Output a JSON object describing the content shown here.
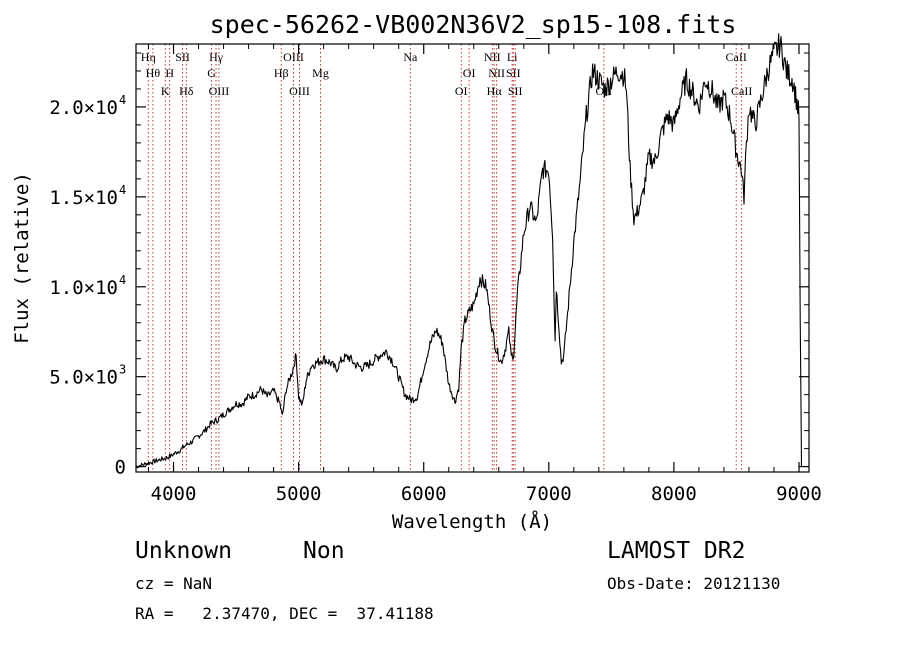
{
  "chart_data": {
    "type": "line",
    "title": "spec-56262-VB002N36V2_sp15-108.fits",
    "xlabel": "Wavelength (Å)",
    "ylabel": "Flux (relative)",
    "xlim": [
      3700,
      9080
    ],
    "ylim": [
      -300,
      23500
    ],
    "xticks": [
      {
        "value": 4000,
        "label": "4000"
      },
      {
        "value": 5000,
        "label": "5000"
      },
      {
        "value": 6000,
        "label": "6000"
      },
      {
        "value": 7000,
        "label": "7000"
      },
      {
        "value": 8000,
        "label": "8000"
      },
      {
        "value": 9000,
        "label": "9000"
      }
    ],
    "yticks": [
      {
        "value": 0,
        "mantissa": "0",
        "exponent": ""
      },
      {
        "value": 5000,
        "mantissa": "5.0×10",
        "exponent": "3"
      },
      {
        "value": 10000,
        "mantissa": "1.0×10",
        "exponent": "4"
      },
      {
        "value": 15000,
        "mantissa": "1.5×10",
        "exponent": "4"
      },
      {
        "value": 20000,
        "mantissa": "2.0×10",
        "exponent": "4"
      }
    ],
    "grid": false,
    "series": [
      {
        "x": [
          3700,
          3750,
          3800,
          3850,
          3900,
          3950,
          3980,
          4000,
          4050,
          4100,
          4150,
          4200,
          4250,
          4300,
          4350,
          4400,
          4450,
          4500,
          4550,
          4600,
          4650,
          4700,
          4750,
          4800,
          4850,
          4870,
          4900,
          4950,
          4980,
          5000,
          5030,
          5060,
          5100,
          5150,
          5200,
          5250,
          5300,
          5350,
          5400,
          5450,
          5500,
          5550,
          5600,
          5650,
          5700,
          5750,
          5800,
          5850,
          5900,
          5950,
          6000,
          6050,
          6100,
          6150,
          6200,
          6250,
          6280,
          6300,
          6330,
          6370,
          6400,
          6450,
          6500,
          6550,
          6580,
          6620,
          6650,
          6680,
          6700,
          6720,
          6750,
          6800,
          6850,
          6900,
          6950,
          7000,
          7030,
          7050,
          7060,
          7100,
          7120,
          7150,
          7200,
          7250,
          7300,
          7350,
          7400,
          7450,
          7500,
          7550,
          7600,
          7620,
          7650,
          7680,
          7700,
          7750,
          7800,
          7850,
          7900,
          7950,
          8000,
          8050,
          8100,
          8150,
          8200,
          8250,
          8300,
          8350,
          8400,
          8450,
          8500,
          8540,
          8560,
          8580,
          8600,
          8650,
          8700,
          8750,
          8800,
          8850,
          8900,
          8950,
          8990,
          9000,
          9010,
          9020
        ],
        "y": [
          0,
          100,
          200,
          300,
          400,
          500,
          600,
          700,
          900,
          1200,
          1400,
          1700,
          2000,
          2400,
          2600,
          2900,
          3200,
          3500,
          3500,
          3900,
          4000,
          4300,
          3900,
          4200,
          3500,
          2800,
          4300,
          5300,
          6200,
          3900,
          3400,
          4800,
          5600,
          5800,
          6000,
          5800,
          5400,
          6000,
          6100,
          5700,
          5500,
          5600,
          5900,
          6200,
          6400,
          5900,
          5000,
          4000,
          3700,
          3900,
          5500,
          6800,
          7600,
          6900,
          4600,
          3600,
          4400,
          6600,
          8100,
          8700,
          9000,
          10500,
          10000,
          7500,
          6500,
          5800,
          6500,
          7500,
          6100,
          6300,
          9700,
          13000,
          14500,
          13500,
          16500,
          16500,
          13000,
          7000,
          10000,
          5800,
          6200,
          8500,
          12500,
          15800,
          19500,
          22000,
          21500,
          21000,
          21500,
          22000,
          21800,
          21000,
          16500,
          13800,
          14000,
          15000,
          17200,
          17000,
          18500,
          19500,
          19000,
          20500,
          21500,
          20800,
          20000,
          21500,
          21000,
          20000,
          20500,
          19500,
          17500,
          16500,
          15000,
          18000,
          20000,
          19000,
          20500,
          22000,
          23000,
          23500,
          22000,
          21500,
          20000,
          19500,
          8000,
          0
        ]
      }
    ],
    "line_markers": [
      {
        "x": 3798,
        "row": 0,
        "label": "Hη"
      },
      {
        "x": 3835,
        "row": 1,
        "label": "Hθ"
      },
      {
        "x": 3934,
        "row": 2,
        "label": "K"
      },
      {
        "x": 3969,
        "row": 1,
        "label": "H"
      },
      {
        "x": 4072,
        "row": 0,
        "label": "SII"
      },
      {
        "x": 4102,
        "row": 2,
        "label": "Hδ"
      },
      {
        "x": 4340,
        "row": 0,
        "label": "Hγ"
      },
      {
        "x": 4304,
        "row": 1,
        "label": "G"
      },
      {
        "x": 4363,
        "row": 2,
        "label": "OIII"
      },
      {
        "x": 4861,
        "row": 1,
        "label": "Hβ"
      },
      {
        "x": 4959,
        "row": 0,
        "label": "OIII"
      },
      {
        "x": 5007,
        "row": 2,
        "label": "OIII"
      },
      {
        "x": 5175,
        "row": 1,
        "label": "Mg"
      },
      {
        "x": 5893,
        "row": 0,
        "label": "Na"
      },
      {
        "x": 6300,
        "row": 2,
        "label": "OI"
      },
      {
        "x": 6363,
        "row": 1,
        "label": "OI"
      },
      {
        "x": 6548,
        "row": 0,
        "label": "NII"
      },
      {
        "x": 6583,
        "row": 1,
        "label": "NII"
      },
      {
        "x": 6563,
        "row": 2,
        "label": "Hα"
      },
      {
        "x": 6707,
        "row": 0,
        "label": "Li"
      },
      {
        "x": 6716,
        "row": 1,
        "label": "SII"
      },
      {
        "x": 6731,
        "row": 2,
        "label": "SII"
      },
      {
        "x": 7440,
        "row": 2,
        "label": "OII"
      },
      {
        "x": 8498,
        "row": 0,
        "label": "CaII"
      },
      {
        "x": 8542,
        "row": 2,
        "label": "CaII"
      }
    ]
  },
  "info": {
    "class": "Unknown",
    "subclass": "Non",
    "cz": "cz = NaN",
    "radec": "RA =   2.37470, DEC =  37.41188",
    "survey": "LAMOST DR2",
    "obs_date": "Obs-Date: 20121130"
  }
}
